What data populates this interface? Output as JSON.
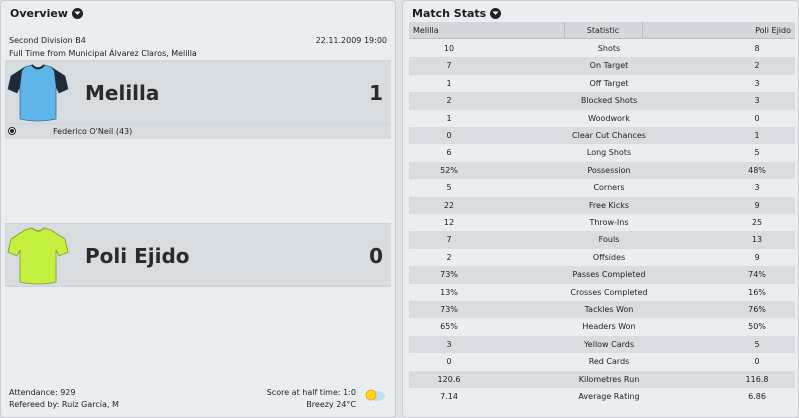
{
  "overview": {
    "title": "Overview",
    "competition": "Second Division B4",
    "datetime": "22.11.2009 19:00",
    "venue": "Full Time from Municipal Álvarez Claros, Melilla",
    "home": {
      "name": "Melilla",
      "score": "1",
      "shirt_color": "#5fb4e8",
      "sleeve_color": "#1f2b38",
      "scorer": "Federico O'Neil (43)"
    },
    "away": {
      "name": "Poli Ejido",
      "score": "0",
      "shirt_color": "#c6f040"
    },
    "attendance": "Attendance: 929",
    "referee": "Refereed by: Ruiz García, M",
    "half_time": "Score at half time: 1:0",
    "weather": "Breezy 24°C"
  },
  "stats": {
    "title": "Match Stats",
    "columns": {
      "home": "Melilla",
      "stat": "Statistic",
      "away": "Poli Ejido"
    },
    "rows": [
      {
        "home": "10",
        "stat": "Shots",
        "away": "8"
      },
      {
        "home": "7",
        "stat": "On Target",
        "away": "2"
      },
      {
        "home": "1",
        "stat": "Off Target",
        "away": "3"
      },
      {
        "home": "2",
        "stat": "Blocked Shots",
        "away": "3"
      },
      {
        "home": "1",
        "stat": "Woodwork",
        "away": "0"
      },
      {
        "home": "0",
        "stat": "Clear Cut Chances",
        "away": "1"
      },
      {
        "home": "6",
        "stat": "Long Shots",
        "away": "5"
      },
      {
        "home": "52%",
        "stat": "Possession",
        "away": "48%"
      },
      {
        "home": "5",
        "stat": "Corners",
        "away": "3"
      },
      {
        "home": "22",
        "stat": "Free Kicks",
        "away": "9"
      },
      {
        "home": "12",
        "stat": "Throw-Ins",
        "away": "25"
      },
      {
        "home": "7",
        "stat": "Fouls",
        "away": "13"
      },
      {
        "home": "2",
        "stat": "Offsides",
        "away": "9"
      },
      {
        "home": "73%",
        "stat": "Passes Completed",
        "away": "74%"
      },
      {
        "home": "13%",
        "stat": "Crosses Completed",
        "away": "16%"
      },
      {
        "home": "73%",
        "stat": "Tackles Won",
        "away": "76%"
      },
      {
        "home": "65%",
        "stat": "Headers Won",
        "away": "50%"
      },
      {
        "home": "3",
        "stat": "Yellow Cards",
        "away": "5"
      },
      {
        "home": "0",
        "stat": "Red Cards",
        "away": "0"
      },
      {
        "home": "120.6",
        "stat": "Kilometres Run",
        "away": "116.8"
      },
      {
        "home": "7.14",
        "stat": "Average Rating",
        "away": "6.86"
      }
    ]
  }
}
